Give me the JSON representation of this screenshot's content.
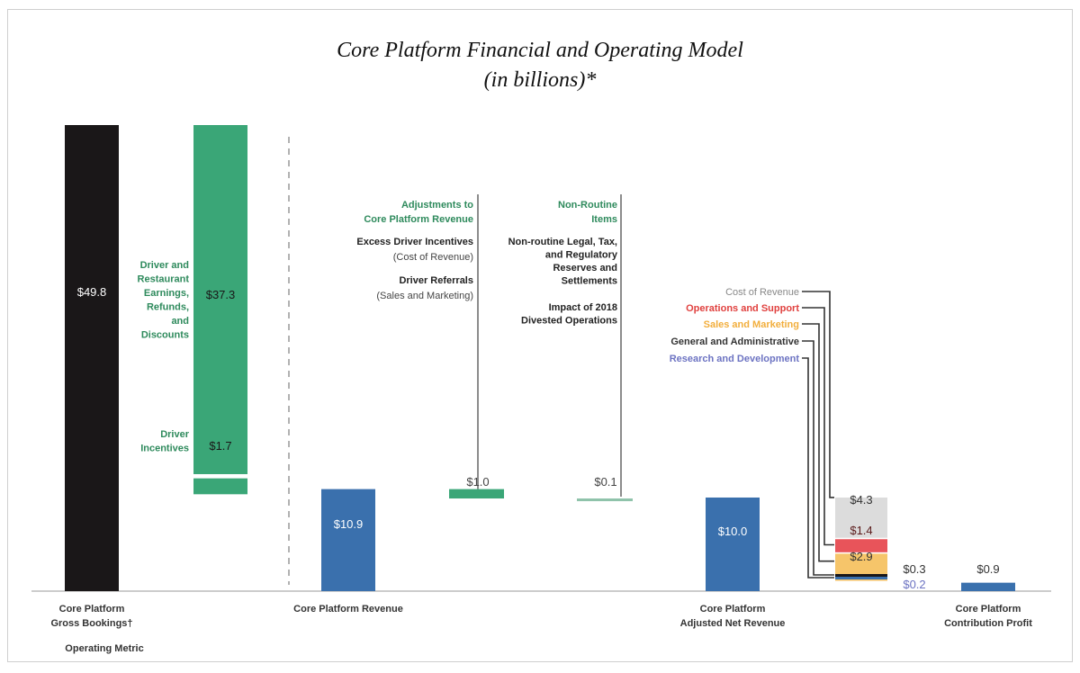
{
  "chart_data": {
    "type": "waterfall",
    "title": "Core Platform Financial and Operating Model",
    "subtitle": "(in billions)*",
    "unit": "billions USD",
    "colors": {
      "black": "#1a1718",
      "green": "#3aa677",
      "blue": "#3a70ad",
      "gray": "#dcdcdc",
      "red": "#e8545a",
      "orange": "#f6c56a",
      "greenText": "#2e8a5c",
      "grayText": "#888888",
      "redText": "#e0413f",
      "orangeText": "#f2ae3c",
      "purpleText": "#6c73c2",
      "darkText": "#333333"
    },
    "gross_bookings": {
      "value": 49.8,
      "label": "$49.8",
      "category": [
        "Core Platform",
        "Gross Bookings†"
      ],
      "metric_label": "Operating Metric"
    },
    "driver_earnings": {
      "value": 37.3,
      "label": "$37.3",
      "desc": [
        "Driver and",
        "Restaurant",
        "Earnings,",
        "Refunds,",
        "and",
        "Discounts"
      ]
    },
    "driver_incentives": {
      "value": 1.7,
      "label": "$1.7",
      "desc": [
        "Driver",
        "Incentives"
      ]
    },
    "revenue": {
      "value": 10.9,
      "label": "$10.9",
      "category": [
        "Core Platform Revenue"
      ]
    },
    "adjustments": {
      "value": 1.0,
      "label": "$1.0",
      "heading": [
        "Adjustments to",
        "Core Platform Revenue"
      ],
      "items": [
        {
          "bold": "Excess Driver Incentives",
          "sub": "(Cost of Revenue)"
        },
        {
          "bold": "Driver Referrals",
          "sub": "(Sales and Marketing)"
        }
      ]
    },
    "non_routine": {
      "value": 0.1,
      "label": "$0.1",
      "heading": [
        "Non-Routine",
        "Items"
      ],
      "items": [
        [
          "Non-routine Legal, Tax,",
          "and Regulatory",
          "Reserves and",
          "Settlements"
        ],
        [
          "Impact of 2018",
          "Divested Operations"
        ]
      ]
    },
    "adjusted_net_revenue": {
      "value": 10.0,
      "label": "$10.0",
      "category": [
        "Core Platform",
        "Adjusted Net Revenue"
      ]
    },
    "costs": [
      {
        "name": "Cost of Revenue",
        "value": 4.3,
        "label": "$4.3"
      },
      {
        "name": "Operations  and Support",
        "value": 1.4,
        "label": "$1.4"
      },
      {
        "name": "Sales and Marketing",
        "value": 2.9,
        "label": "$2.9"
      },
      {
        "name": "General and Administrative",
        "value": 0.3,
        "label": "$0.3"
      },
      {
        "name": "Research and Development",
        "value": 0.2,
        "label": "$0.2"
      }
    ],
    "contribution_profit": {
      "value": 0.9,
      "label": "$0.9",
      "category": [
        "Core Platform",
        "Contribution Profit"
      ]
    }
  }
}
